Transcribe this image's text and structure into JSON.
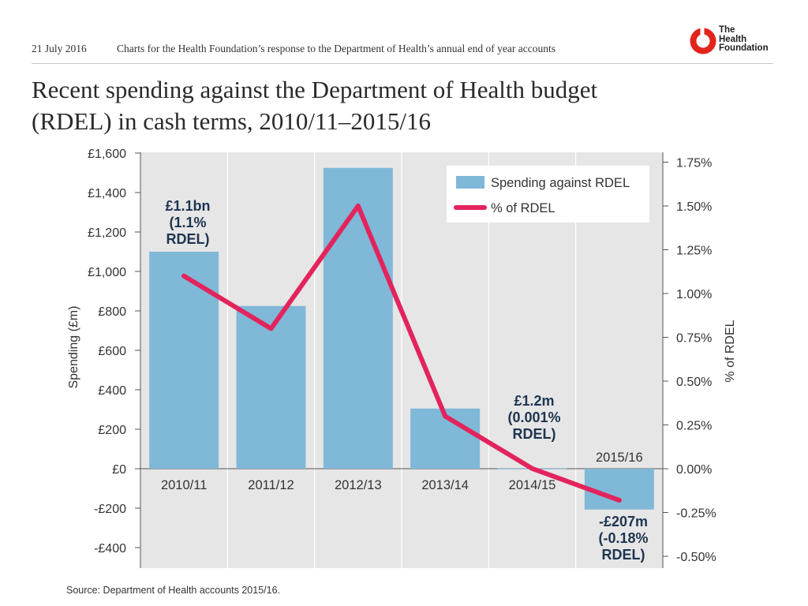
{
  "header": {
    "date": "21 July 2016",
    "description": "Charts for the Health Foundation’s response to the Department of Health’s annual end of year accounts",
    "logo_lines": [
      "The",
      "Health",
      "Foundation"
    ]
  },
  "title": {
    "line1": "Recent spending against the Department of Health budget",
    "line2": "(RDEL) in cash terms, 2010/11–2015/16"
  },
  "colors": {
    "bar": "#80b8d8",
    "line": "#e3245c",
    "plot_bg": "#e6e6e6",
    "annotation": "#1d3550",
    "logo_red": "#e1251b"
  },
  "chart_data": {
    "type": "bar",
    "categories": [
      "2010/11",
      "2011/12",
      "2012/13",
      "2013/14",
      "2014/15",
      "2015/16"
    ],
    "series": [
      {
        "name": "Spending against RDEL",
        "type": "bar",
        "axis": "left",
        "values": [
          1100,
          825,
          1525,
          305,
          1.2,
          -207
        ]
      },
      {
        "name": "% of RDEL",
        "type": "line",
        "axis": "right",
        "values": [
          1.1,
          0.8,
          1.5,
          0.3,
          0.001,
          -0.18
        ]
      }
    ],
    "ylabel": "Spending (£m)",
    "y2label": "% of RDEL",
    "ylim": [
      -500,
      1600
    ],
    "y2lim": [
      -0.65625,
      1.75
    ],
    "yticks": [
      1600,
      1400,
      1200,
      1000,
      800,
      600,
      400,
      200,
      0,
      -200,
      -400
    ],
    "ytick_labels": [
      "£1,600",
      "£1,400",
      "£1,200",
      "£1,000",
      "£800",
      "£600",
      "£400",
      "£200",
      "£0",
      "-£200",
      "-£400"
    ],
    "y2ticks": [
      1.75,
      1.5,
      1.25,
      1.0,
      0.75,
      0.5,
      0.25,
      0.0,
      -0.25,
      -0.5
    ],
    "y2tick_labels": [
      "1.75%",
      "1.50%",
      "1.25%",
      "1.00%",
      "0.75%",
      "0.50%",
      "0.25%",
      "0.00%",
      "-0.25%",
      "-0.50%"
    ],
    "legend": {
      "position": "top-right",
      "items": [
        "Spending against RDEL",
        "% of RDEL"
      ]
    },
    "annotations": [
      {
        "category": "2010/11",
        "lines": [
          "£1.1bn",
          "(1.1%",
          "RDEL)"
        ]
      },
      {
        "category": "2014/15",
        "lines": [
          "£1.2m",
          "(0.001%",
          "RDEL)"
        ]
      },
      {
        "category": "2015/16",
        "lines": [
          "-£207m",
          "(-0.18%",
          "RDEL)"
        ]
      }
    ],
    "grid": "vertical"
  },
  "source": "Source: Department of Health accounts 2015/16."
}
